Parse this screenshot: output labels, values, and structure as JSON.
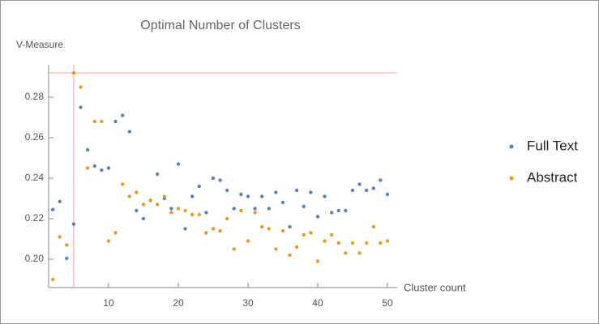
{
  "chart_data": {
    "type": "scatter",
    "title": "Optimal Number of Clusters",
    "ylabel": "V-Measure",
    "xlabel": "Cluster count",
    "x": [
      2,
      3,
      4,
      5,
      6,
      7,
      8,
      9,
      10,
      11,
      12,
      13,
      14,
      15,
      16,
      17,
      18,
      19,
      20,
      21,
      22,
      23,
      24,
      25,
      26,
      27,
      28,
      29,
      30,
      31,
      32,
      33,
      34,
      35,
      36,
      37,
      38,
      39,
      40,
      41,
      42,
      43,
      44,
      45,
      46,
      47,
      48,
      49,
      50
    ],
    "series": [
      {
        "name": "Full Text",
        "color": "#5e81b5",
        "values": [
          0.2245,
          0.2285,
          0.2004,
          0.2173,
          0.275,
          0.254,
          0.246,
          0.244,
          0.245,
          0.268,
          0.271,
          0.263,
          0.224,
          0.22,
          0.229,
          0.242,
          0.23,
          0.225,
          0.247,
          0.215,
          0.231,
          0.236,
          0.223,
          0.24,
          0.239,
          0.234,
          0.225,
          0.232,
          0.231,
          0.225,
          0.231,
          0.225,
          0.233,
          0.228,
          0.216,
          0.234,
          0.226,
          0.233,
          0.221,
          0.231,
          0.223,
          0.224,
          0.224,
          0.234,
          0.237,
          0.234,
          0.235,
          0.239,
          0.232
        ]
      },
      {
        "name": "Abstract",
        "color": "#e19c24",
        "values": [
          0.19,
          0.211,
          0.207,
          0.292,
          0.285,
          0.245,
          0.268,
          0.268,
          0.209,
          0.213,
          0.237,
          0.231,
          0.233,
          0.227,
          0.229,
          0.227,
          0.231,
          0.223,
          0.225,
          0.224,
          0.222,
          0.222,
          0.213,
          0.215,
          0.214,
          0.22,
          0.205,
          0.224,
          0.209,
          0.223,
          0.216,
          0.215,
          0.205,
          0.214,
          0.202,
          0.206,
          0.212,
          0.213,
          0.199,
          0.209,
          0.212,
          0.208,
          0.203,
          0.208,
          0.203,
          0.208,
          0.216,
          0.208,
          0.209
        ]
      }
    ],
    "reference_x": 5,
    "reference_y": 0.292,
    "reference_color": "#f4a0a0",
    "xlim": [
      1.4,
      51.4
    ],
    "ylim": [
      0.186,
      0.296
    ],
    "xticks": [
      10,
      20,
      30,
      40,
      50
    ],
    "yticks": [
      {
        "value": 0.2,
        "label": "0.20"
      },
      {
        "value": 0.22,
        "label": "0.22"
      },
      {
        "value": 0.24,
        "label": "0.24"
      },
      {
        "value": 0.26,
        "label": "0.26"
      },
      {
        "value": 0.28,
        "label": "0.28"
      }
    ]
  }
}
